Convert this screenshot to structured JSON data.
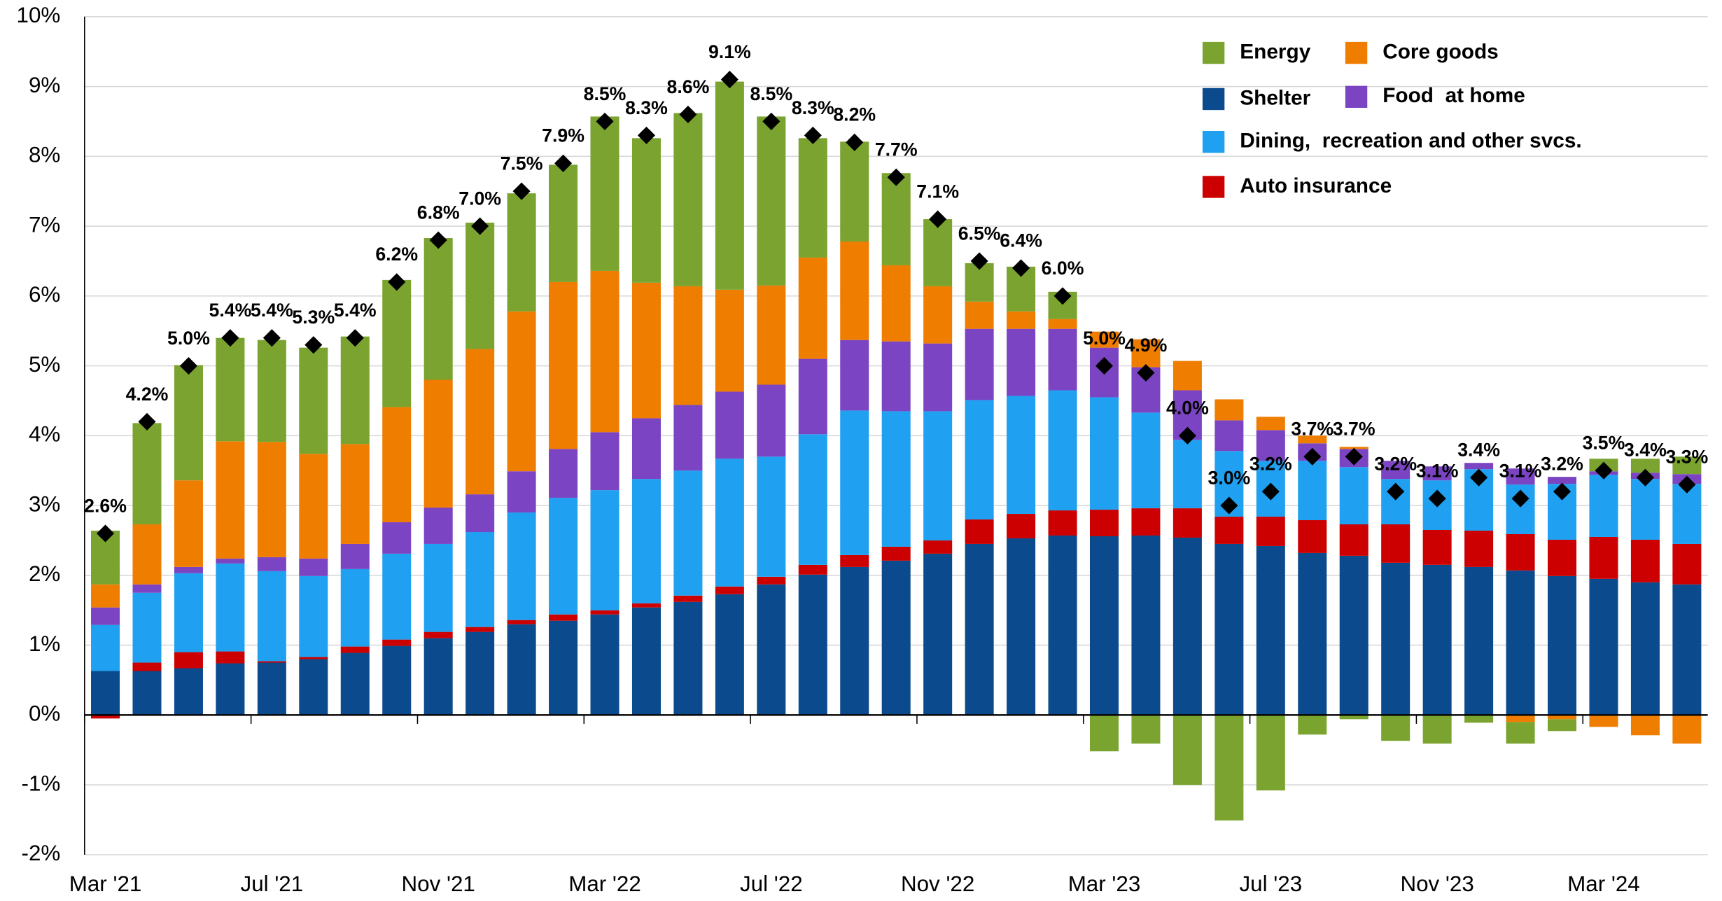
{
  "chart_data": {
    "type": "stacked-bar",
    "categories": [
      "Mar '21",
      null,
      null,
      null,
      "Jul '21",
      null,
      null,
      null,
      "Nov '21",
      null,
      null,
      null,
      "Mar '22",
      null,
      null,
      null,
      "Jul '22",
      null,
      null,
      null,
      "Nov '22",
      null,
      null,
      null,
      "Mar '23",
      null,
      null,
      null,
      "Jul '23",
      null,
      null,
      null,
      "Nov '23",
      null,
      null,
      null,
      "Mar '24",
      null,
      null
    ],
    "series": [
      {
        "name": "Shelter",
        "color": "#0b4a8c",
        "values": [
          0.63,
          0.63,
          0.67,
          0.74,
          0.75,
          0.8,
          0.89,
          0.99,
          1.1,
          1.19,
          1.3,
          1.35,
          1.44,
          1.54,
          1.62,
          1.73,
          1.87,
          2.01,
          2.12,
          2.21,
          2.31,
          2.45,
          2.53,
          2.57,
          2.56,
          2.57,
          2.54,
          2.45,
          2.42,
          2.32,
          2.28,
          2.18,
          2.15,
          2.12,
          2.07,
          1.99,
          1.95,
          1.9,
          1.87
        ]
      },
      {
        "name": "Auto insurance",
        "color": "#cc0000",
        "values": [
          -0.05,
          0.12,
          0.23,
          0.17,
          0.02,
          0.03,
          0.09,
          0.09,
          0.09,
          0.07,
          0.06,
          0.09,
          0.06,
          0.06,
          0.09,
          0.11,
          0.11,
          0.14,
          0.17,
          0.2,
          0.19,
          0.35,
          0.35,
          0.36,
          0.38,
          0.39,
          0.42,
          0.39,
          0.42,
          0.47,
          0.45,
          0.55,
          0.5,
          0.52,
          0.52,
          0.52,
          0.6,
          0.61,
          0.58
        ]
      },
      {
        "name": "Dining,  recreation and other svcs.",
        "color": "#1fa0f0",
        "values": [
          0.66,
          1.0,
          1.13,
          1.26,
          1.29,
          1.16,
          1.11,
          1.23,
          1.26,
          1.36,
          1.54,
          1.67,
          1.72,
          1.78,
          1.79,
          1.83,
          1.72,
          1.87,
          2.07,
          1.94,
          1.85,
          1.71,
          1.69,
          1.72,
          1.61,
          1.37,
          0.98,
          0.94,
          0.8,
          0.85,
          0.82,
          0.65,
          0.71,
          0.88,
          0.71,
          0.8,
          0.89,
          0.87,
          0.86
        ]
      },
      {
        "name": "Food  at home",
        "color": "#7b44c2",
        "values": [
          0.25,
          0.12,
          0.09,
          0.07,
          0.2,
          0.25,
          0.36,
          0.45,
          0.52,
          0.54,
          0.59,
          0.7,
          0.83,
          0.87,
          0.94,
          0.96,
          1.03,
          1.08,
          1.01,
          1.0,
          0.97,
          1.02,
          0.96,
          0.88,
          0.71,
          0.65,
          0.71,
          0.44,
          0.44,
          0.25,
          0.26,
          0.26,
          0.2,
          0.09,
          0.23,
          0.1,
          0.05,
          0.09,
          0.14
        ]
      },
      {
        "name": "Core goods",
        "color": "#ef7d00",
        "values": [
          0.33,
          0.86,
          1.24,
          1.68,
          1.65,
          1.5,
          1.43,
          1.65,
          1.83,
          2.08,
          2.29,
          2.39,
          2.31,
          1.94,
          1.7,
          1.46,
          1.42,
          1.45,
          1.41,
          1.09,
          0.82,
          0.39,
          0.25,
          0.14,
          0.23,
          0.4,
          0.42,
          0.3,
          0.19,
          0.11,
          0.03,
          0,
          0,
          0,
          -0.1,
          -0.06,
          -0.17,
          -0.29,
          -0.41
        ]
      },
      {
        "name": "Energy",
        "color": "#7aa32f",
        "values": [
          0.77,
          1.45,
          1.65,
          1.48,
          1.46,
          1.52,
          1.54,
          1.82,
          2.03,
          1.81,
          1.69,
          1.68,
          2.21,
          2.07,
          2.48,
          2.98,
          2.42,
          1.71,
          1.43,
          1.32,
          0.96,
          0.55,
          0.64,
          0.39,
          -0.52,
          -0.41,
          -1.0,
          -1.51,
          -1.08,
          -0.28,
          -0.06,
          -0.37,
          -0.41,
          -0.11,
          -0.31,
          -0.17,
          0.18,
          0.2,
          0.25
        ]
      }
    ],
    "total": {
      "color": "#000000",
      "values": [
        2.6,
        4.2,
        5.0,
        5.4,
        5.4,
        5.3,
        5.4,
        6.2,
        6.8,
        7.0,
        7.5,
        7.9,
        8.5,
        8.3,
        8.6,
        9.1,
        8.5,
        8.3,
        8.2,
        7.7,
        7.1,
        6.5,
        6.4,
        6.0,
        5.0,
        4.9,
        4.0,
        3.0,
        3.2,
        3.7,
        3.7,
        3.2,
        3.1,
        3.4,
        3.1,
        3.2,
        3.5,
        3.4,
        3.3
      ],
      "value_labels": [
        "2.6%",
        "4.2%",
        "5.0%",
        "5.4%",
        "5.4%",
        "5.3%",
        "5.4%",
        "6.2%",
        "6.8%",
        "7.0%",
        "7.5%",
        "7.9%",
        "8.5%",
        "8.3%",
        "8.6%",
        "9.1%",
        "8.5%",
        "8.3%",
        "8.2%",
        "7.7%",
        "7.1%",
        "6.5%",
        "6.4%",
        "6.0%",
        "5.0%",
        "4.9%",
        "4.0%",
        "3.0%",
        "3.2%",
        "3.7%",
        "3.7%",
        "3.2%",
        "3.1%",
        "3.4%",
        "3.1%",
        "3.2%",
        "3.5%",
        "3.4%",
        "3.3%"
      ]
    },
    "ylim": [
      -2,
      10
    ],
    "yticks": [
      {
        "value": -2,
        "label": "-2%"
      },
      {
        "value": -1,
        "label": "-1%"
      },
      {
        "value": 0,
        "label": "0%"
      },
      {
        "value": 1,
        "label": "1%"
      },
      {
        "value": 2,
        "label": "2%"
      },
      {
        "value": 3,
        "label": "3%"
      },
      {
        "value": 4,
        "label": "4%"
      },
      {
        "value": 5,
        "label": "5%"
      },
      {
        "value": 6,
        "label": "6%"
      },
      {
        "value": 7,
        "label": "7%"
      },
      {
        "value": 8,
        "label": "8%"
      },
      {
        "value": 9,
        "label": "9%"
      },
      {
        "value": 10,
        "label": "10%"
      }
    ],
    "grid": true
  }
}
